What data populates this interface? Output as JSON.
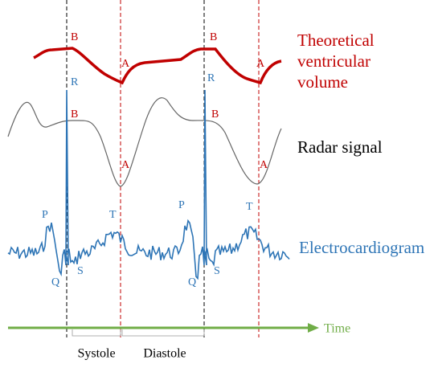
{
  "legend": {
    "volume": [
      "Theoretical",
      "ventricular",
      "volume"
    ],
    "radar": "Radar signal",
    "ecg": "Electrocardiogram"
  },
  "volume_markers": [
    "B",
    "A",
    "B",
    "A"
  ],
  "radar_markers": [
    "B",
    "A",
    "B",
    "A"
  ],
  "ecg_markers": [
    "P",
    "R",
    "Q",
    "S",
    "T",
    "P",
    "R",
    "Q",
    "S",
    "T"
  ],
  "axis": {
    "time": "Time"
  },
  "phases": {
    "systole": "Systole",
    "diastole": "Diastole"
  }
}
